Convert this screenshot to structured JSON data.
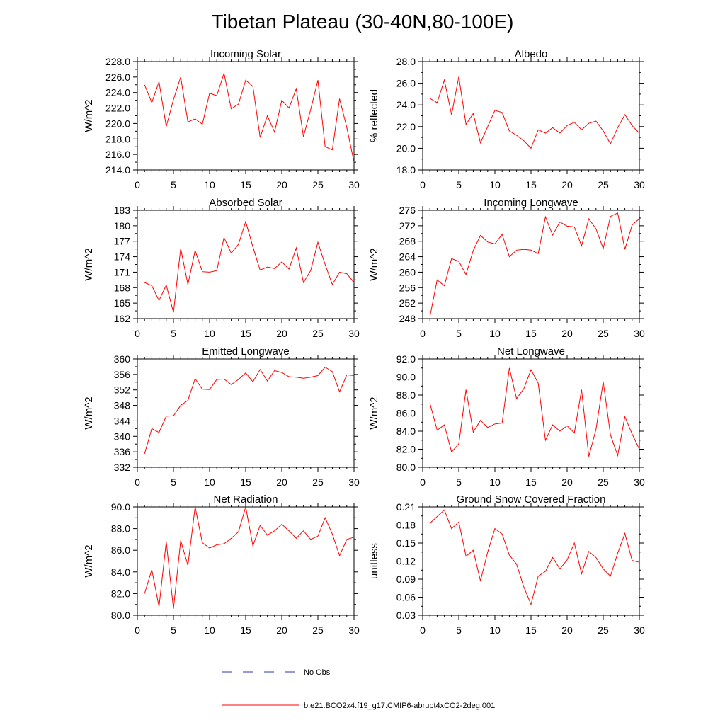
{
  "title": "Tibetan Plateau (30-40N,80-100E)",
  "colors": {
    "model": "#ff0000",
    "obs": "#3333aa",
    "axis": "#000000"
  },
  "legend": {
    "obs_label": "No Obs",
    "model_label": "b.e21.BCO2x4.f19_g17.CMIP6-abrupt4xCO2-2deg.001"
  },
  "chart_data": [
    {
      "type": "line",
      "title": "Incoming Solar",
      "ylabel": "W/m^2",
      "xlim": [
        0,
        30
      ],
      "ylim": [
        214,
        228
      ],
      "xticks": [
        0,
        5,
        10,
        15,
        20,
        25,
        30
      ],
      "xtick_labels": [
        "0",
        "5",
        "10",
        "15",
        "20",
        "25",
        "30"
      ],
      "yticks": [
        214,
        216,
        218,
        220,
        222,
        224,
        226,
        228
      ],
      "ytick_labels": [
        "214.0",
        "216.0",
        "218.0",
        "220.0",
        "222.0",
        "224.0",
        "226.0",
        "228.0"
      ],
      "x": [
        1,
        2,
        3,
        4,
        5,
        6,
        7,
        8,
        9,
        10,
        11,
        12,
        13,
        14,
        15,
        16,
        17,
        18,
        19,
        20,
        21,
        22,
        23,
        24,
        25,
        26,
        27,
        28,
        29,
        30
      ],
      "series": [
        {
          "values": [
            225.0,
            222.7,
            225.4,
            219.6,
            223.1,
            226.0,
            220.2,
            220.6,
            219.9,
            223.9,
            223.6,
            226.5,
            221.9,
            222.5,
            225.6,
            224.8,
            218.2,
            221.0,
            218.9,
            223.0,
            222.0,
            224.5,
            218.3,
            221.8,
            225.6,
            217.0,
            216.6,
            223.2,
            219.5,
            215.0
          ]
        }
      ]
    },
    {
      "type": "line",
      "title": "Albedo",
      "ylabel": "% reflected",
      "xlim": [
        0,
        30
      ],
      "ylim": [
        18,
        28
      ],
      "xticks": [
        0,
        5,
        10,
        15,
        20,
        25,
        30
      ],
      "xtick_labels": [
        "0",
        "5",
        "10",
        "15",
        "20",
        "25",
        "30"
      ],
      "yticks": [
        18,
        20,
        22,
        24,
        26,
        28
      ],
      "ytick_labels": [
        "18.0",
        "20.0",
        "22.0",
        "24.0",
        "26.0",
        "28.0"
      ],
      "x": [
        1,
        2,
        3,
        4,
        5,
        6,
        7,
        8,
        9,
        10,
        11,
        12,
        13,
        14,
        15,
        16,
        17,
        18,
        19,
        20,
        21,
        22,
        23,
        24,
        25,
        26,
        27,
        28,
        29,
        30
      ],
      "series": [
        {
          "values": [
            24.6,
            24.2,
            26.3,
            23.1,
            26.6,
            22.2,
            23.2,
            20.5,
            22.0,
            23.5,
            23.3,
            21.6,
            21.2,
            20.7,
            20.0,
            21.7,
            21.4,
            21.9,
            21.4,
            22.1,
            22.4,
            21.7,
            22.3,
            22.5,
            21.6,
            20.4,
            21.9,
            23.1,
            22.1,
            21.4
          ]
        }
      ]
    },
    {
      "type": "line",
      "title": "Absorbed Solar",
      "ylabel": "W/m^2",
      "xlim": [
        0,
        30
      ],
      "ylim": [
        162,
        183
      ],
      "xticks": [
        0,
        5,
        10,
        15,
        20,
        25,
        30
      ],
      "xtick_labels": [
        "0",
        "5",
        "10",
        "15",
        "20",
        "25",
        "30"
      ],
      "yticks": [
        162,
        165,
        168,
        171,
        174,
        177,
        180,
        183
      ],
      "ytick_labels": [
        "162",
        "165",
        "168",
        "171",
        "174",
        "177",
        "180",
        "183"
      ],
      "x": [
        1,
        2,
        3,
        4,
        5,
        6,
        7,
        8,
        9,
        10,
        11,
        12,
        13,
        14,
        15,
        16,
        17,
        18,
        19,
        20,
        21,
        22,
        23,
        24,
        25,
        26,
        27,
        28,
        29,
        30
      ],
      "series": [
        {
          "values": [
            169.0,
            168.4,
            165.5,
            168.5,
            163.2,
            175.6,
            168.6,
            175.2,
            171.1,
            171.0,
            171.3,
            177.7,
            174.7,
            176.4,
            180.8,
            175.9,
            171.4,
            172.0,
            171.7,
            173.0,
            171.6,
            175.7,
            169.0,
            171.3,
            176.8,
            172.5,
            168.6,
            171.0,
            170.7,
            169.0
          ]
        }
      ]
    },
    {
      "type": "line",
      "title": "Incoming Longwave",
      "ylabel": "W/m^2",
      "xlim": [
        0,
        30
      ],
      "ylim": [
        248,
        276
      ],
      "xticks": [
        0,
        5,
        10,
        15,
        20,
        25,
        30
      ],
      "xtick_labels": [
        "0",
        "5",
        "10",
        "15",
        "20",
        "25",
        "30"
      ],
      "yticks": [
        248,
        252,
        256,
        260,
        264,
        268,
        272,
        276
      ],
      "ytick_labels": [
        "248",
        "252",
        "256",
        "260",
        "264",
        "268",
        "272",
        "276"
      ],
      "x": [
        1,
        2,
        3,
        4,
        5,
        6,
        7,
        8,
        9,
        10,
        11,
        12,
        13,
        14,
        15,
        16,
        17,
        18,
        19,
        20,
        21,
        22,
        23,
        24,
        25,
        26,
        27,
        28,
        29,
        30
      ],
      "series": [
        {
          "values": [
            248.5,
            258.0,
            256.5,
            263.5,
            262.8,
            259.4,
            265.6,
            269.5,
            267.8,
            267.3,
            269.8,
            264.0,
            265.7,
            265.9,
            265.7,
            264.8,
            274.3,
            269.6,
            273.0,
            271.9,
            271.7,
            266.8,
            273.8,
            271.2,
            266.1,
            274.4,
            275.3,
            265.9,
            272.2,
            273.8
          ]
        }
      ]
    },
    {
      "type": "line",
      "title": "Emitted Longwave",
      "ylabel": "W/m^2",
      "xlim": [
        0,
        30
      ],
      "ylim": [
        332,
        360
      ],
      "xticks": [
        0,
        5,
        10,
        15,
        20,
        25,
        30
      ],
      "xtick_labels": [
        "0",
        "5",
        "10",
        "15",
        "20",
        "25",
        "30"
      ],
      "yticks": [
        332,
        336,
        340,
        344,
        348,
        352,
        356,
        360
      ],
      "ytick_labels": [
        "332",
        "336",
        "340",
        "344",
        "348",
        "352",
        "356",
        "360"
      ],
      "x": [
        1,
        2,
        3,
        4,
        5,
        6,
        7,
        8,
        9,
        10,
        11,
        12,
        13,
        14,
        15,
        16,
        17,
        18,
        19,
        20,
        21,
        22,
        23,
        24,
        25,
        26,
        27,
        28,
        29,
        30
      ],
      "series": [
        {
          "values": [
            335.5,
            342.0,
            341.0,
            345.2,
            345.3,
            348.0,
            349.3,
            354.9,
            352.2,
            352.1,
            354.7,
            354.8,
            353.4,
            354.7,
            356.4,
            354.1,
            357.3,
            354.3,
            357.0,
            356.5,
            355.4,
            355.3,
            355.0,
            355.3,
            355.7,
            357.9,
            356.7,
            351.5,
            355.9,
            355.7
          ]
        }
      ]
    },
    {
      "type": "line",
      "title": "Net Longwave",
      "ylabel": "W/m^2",
      "xlim": [
        0,
        30
      ],
      "ylim": [
        80,
        92
      ],
      "xticks": [
        0,
        5,
        10,
        15,
        20,
        25,
        30
      ],
      "xtick_labels": [
        "0",
        "5",
        "10",
        "15",
        "20",
        "25",
        "30"
      ],
      "yticks": [
        80,
        82,
        84,
        86,
        88,
        90,
        92
      ],
      "ytick_labels": [
        "80.0",
        "82.0",
        "84.0",
        "86.0",
        "88.0",
        "90.0",
        "92.0"
      ],
      "x": [
        1,
        2,
        3,
        4,
        5,
        6,
        7,
        8,
        9,
        10,
        11,
        12,
        13,
        14,
        15,
        16,
        17,
        18,
        19,
        20,
        21,
        22,
        23,
        24,
        25,
        26,
        27,
        28,
        29,
        30
      ],
      "series": [
        {
          "values": [
            87.1,
            84.1,
            84.7,
            81.7,
            82.6,
            88.6,
            83.9,
            85.2,
            84.4,
            84.8,
            84.9,
            91.0,
            87.6,
            88.7,
            90.8,
            89.3,
            83.0,
            84.7,
            84.0,
            84.6,
            83.8,
            88.6,
            81.2,
            84.2,
            89.5,
            83.6,
            81.3,
            85.6,
            83.7,
            82.0
          ]
        }
      ]
    },
    {
      "type": "line",
      "title": "Net Radiation",
      "ylabel": "W/m^2",
      "xlim": [
        0,
        30
      ],
      "ylim": [
        80,
        90
      ],
      "xticks": [
        0,
        5,
        10,
        15,
        20,
        25,
        30
      ],
      "xtick_labels": [
        "0",
        "5",
        "10",
        "15",
        "20",
        "25",
        "30"
      ],
      "yticks": [
        80,
        82,
        84,
        86,
        88,
        90
      ],
      "ytick_labels": [
        "80.0",
        "82.0",
        "84.0",
        "86.0",
        "88.0",
        "90.0"
      ],
      "x": [
        1,
        2,
        3,
        4,
        5,
        6,
        7,
        8,
        9,
        10,
        11,
        12,
        13,
        14,
        15,
        16,
        17,
        18,
        19,
        20,
        21,
        22,
        23,
        24,
        25,
        26,
        27,
        28,
        29,
        30
      ],
      "series": [
        {
          "values": [
            82.0,
            84.2,
            80.8,
            86.8,
            80.6,
            86.9,
            84.6,
            90.0,
            86.7,
            86.2,
            86.5,
            86.6,
            87.1,
            87.7,
            90.0,
            86.4,
            88.3,
            87.4,
            87.8,
            88.4,
            87.8,
            87.1,
            87.8,
            87.0,
            87.3,
            89.0,
            87.5,
            85.5,
            87.0,
            87.2
          ]
        }
      ]
    },
    {
      "type": "line",
      "title": "Ground Snow Covered Fraction",
      "ylabel": "unitless",
      "xlim": [
        0,
        30
      ],
      "ylim": [
        0.03,
        0.21
      ],
      "xticks": [
        0,
        5,
        10,
        15,
        20,
        25,
        30
      ],
      "xtick_labels": [
        "0",
        "5",
        "10",
        "15",
        "20",
        "25",
        "30"
      ],
      "yticks": [
        0.03,
        0.06,
        0.09,
        0.12,
        0.15,
        0.18,
        0.21
      ],
      "ytick_labels": [
        "0.03",
        "0.06",
        "0.09",
        "0.12",
        "0.15",
        "0.18",
        "0.21"
      ],
      "x": [
        1,
        2,
        3,
        4,
        5,
        6,
        7,
        8,
        9,
        10,
        11,
        12,
        13,
        14,
        15,
        16,
        17,
        18,
        19,
        20,
        21,
        22,
        23,
        24,
        25,
        26,
        27,
        28,
        29,
        30
      ],
      "series": [
        {
          "values": [
            0.183,
            0.194,
            0.205,
            0.174,
            0.185,
            0.128,
            0.138,
            0.087,
            0.135,
            0.174,
            0.165,
            0.13,
            0.115,
            0.077,
            0.048,
            0.095,
            0.103,
            0.126,
            0.107,
            0.122,
            0.15,
            0.099,
            0.136,
            0.126,
            0.107,
            0.095,
            0.133,
            0.166,
            0.121,
            0.118
          ]
        }
      ]
    }
  ]
}
